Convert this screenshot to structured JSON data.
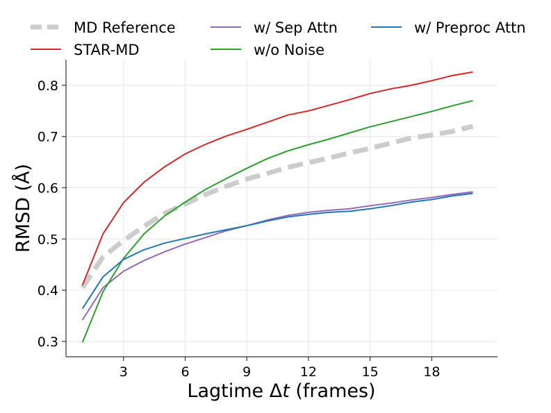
{
  "chart_data": {
    "type": "line",
    "title": "",
    "xlabel": "Lagtime Δt (frames)",
    "xlabel_parts": [
      "Lagtime Δ",
      "t",
      " (frames)"
    ],
    "ylabel": "RMSD (Å)",
    "xlim": [
      0.2,
      21.2
    ],
    "ylim": [
      0.27,
      0.85
    ],
    "xticks": [
      3,
      6,
      9,
      12,
      15,
      18
    ],
    "xtick_labels": [
      "3",
      "6",
      "9",
      "12",
      "15",
      "18"
    ],
    "yticks": [
      0.3,
      0.4,
      0.5,
      0.6,
      0.7,
      0.8
    ],
    "ytick_labels": [
      "0.3",
      "0.4",
      "0.5",
      "0.6",
      "0.7",
      "0.8"
    ],
    "grid": true,
    "legend_position": "top",
    "x": [
      1,
      2,
      3,
      4,
      5,
      6,
      7,
      8,
      9,
      10,
      11,
      12,
      13,
      14,
      15,
      16,
      17,
      18,
      19,
      20
    ],
    "series": [
      {
        "name": "MD Reference",
        "color": "#cccccc",
        "style": "dashed",
        "values": [
          0.405,
          0.465,
          0.497,
          0.525,
          0.55,
          0.568,
          0.587,
          0.603,
          0.617,
          0.628,
          0.64,
          0.649,
          0.658,
          0.668,
          0.677,
          0.687,
          0.697,
          0.703,
          0.71,
          0.72
        ]
      },
      {
        "name": "STAR-MD",
        "color": "#d62728",
        "style": "solid",
        "values": [
          0.41,
          0.51,
          0.571,
          0.611,
          0.641,
          0.666,
          0.685,
          0.701,
          0.714,
          0.728,
          0.742,
          0.75,
          0.761,
          0.772,
          0.784,
          0.793,
          0.8,
          0.809,
          0.819,
          0.826
        ]
      },
      {
        "name": "w/ Sep Attn",
        "color": "#9467bd",
        "style": "solid",
        "values": [
          0.342,
          0.405,
          0.437,
          0.458,
          0.475,
          0.49,
          0.503,
          0.516,
          0.526,
          0.537,
          0.546,
          0.552,
          0.556,
          0.559,
          0.565,
          0.57,
          0.576,
          0.581,
          0.587,
          0.592
        ]
      },
      {
        "name": "w/o Noise",
        "color": "#2ca02c",
        "style": "solid",
        "values": [
          0.298,
          0.397,
          0.462,
          0.51,
          0.545,
          0.572,
          0.597,
          0.618,
          0.638,
          0.657,
          0.672,
          0.684,
          0.695,
          0.707,
          0.719,
          0.729,
          0.739,
          0.749,
          0.76,
          0.77
        ]
      },
      {
        "name": "w/ Preproc Attn",
        "color": "#1f77b4",
        "style": "solid",
        "values": [
          0.364,
          0.426,
          0.46,
          0.479,
          0.492,
          0.501,
          0.51,
          0.518,
          0.526,
          0.535,
          0.543,
          0.548,
          0.552,
          0.554,
          0.559,
          0.565,
          0.572,
          0.577,
          0.584,
          0.589
        ]
      }
    ]
  }
}
